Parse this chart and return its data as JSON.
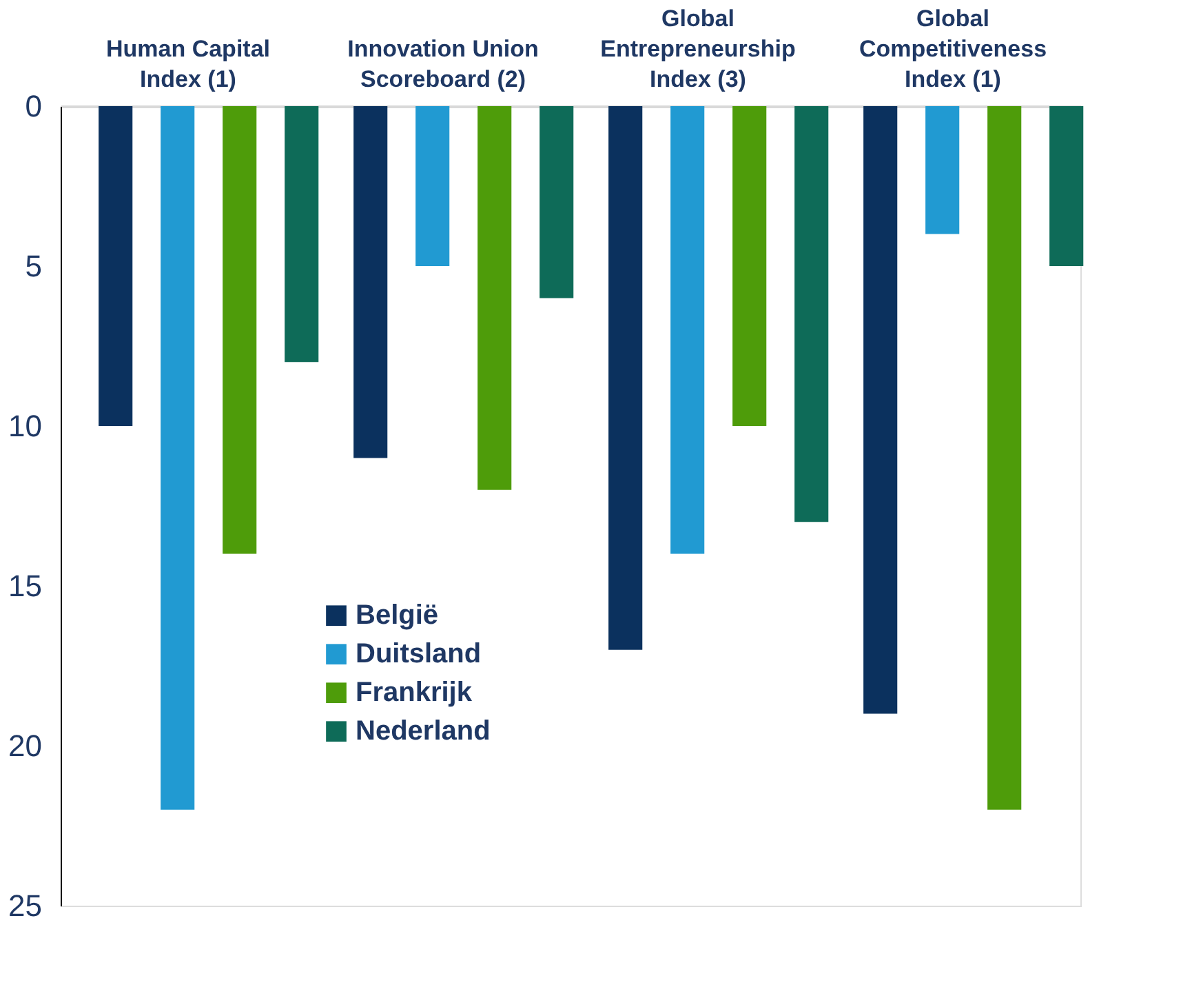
{
  "chart_data": {
    "type": "bar",
    "categories": [
      "Human Capital Index (1)",
      "Innovation Union Scoreboard (2)",
      "Global Entrepreneurship Index (3)",
      "Global Competitiveness Index (1)"
    ],
    "series": [
      {
        "name": "België",
        "color": "#0b315e",
        "values": [
          10,
          11,
          17,
          19
        ]
      },
      {
        "name": "Duitsland",
        "color": "#219ad2",
        "values": [
          22,
          5,
          14,
          4
        ]
      },
      {
        "name": "Frankrijk",
        "color": "#4e9c0a",
        "values": [
          14,
          12,
          10,
          22
        ]
      },
      {
        "name": "Nederland",
        "color": "#0e6b58",
        "values": [
          8,
          6,
          13,
          5
        ]
      }
    ],
    "ylim": [
      25,
      0
    ],
    "yticks": [
      0,
      5,
      10,
      15,
      20,
      25
    ],
    "grid": false,
    "legend": "bottom"
  }
}
